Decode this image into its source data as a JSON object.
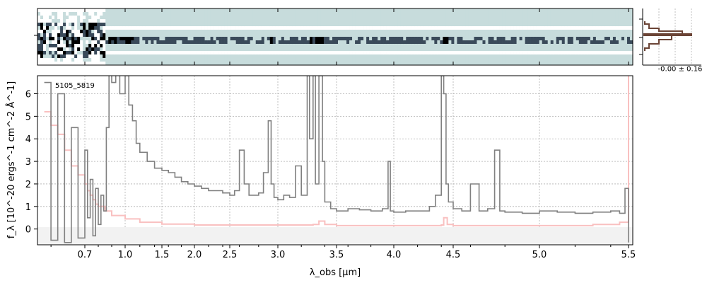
{
  "chart_data": [
    {
      "type": "heatmap",
      "panel": "2d-spectrum",
      "colormap": [
        "#ffffff",
        "#c7dcdc",
        "#3a4a5a",
        "#000000"
      ],
      "background_color": "#c4dcdb"
    },
    {
      "type": "line",
      "panel": "1d-spectrum",
      "label": "5105_5819",
      "xlabel": "λ_obs [μm]",
      "ylabel": "f_λ [10^-20 ergs^-1 cm^-2 Å^-1]",
      "x_ticks": [
        "0.7",
        "1.0",
        "1.5",
        "2.0",
        "2.5",
        "3.0",
        "3.5",
        "4.0",
        "4.5",
        "5.0",
        "5.5"
      ],
      "x_tick_values": [
        0.7,
        1.0,
        1.5,
        2.0,
        2.5,
        3.0,
        3.5,
        4.0,
        4.5,
        5.0,
        5.5
      ],
      "y_ticks": [
        "0",
        "1",
        "2",
        "3",
        "4",
        "5",
        "6"
      ],
      "ylim": [
        -0.7,
        6.8
      ],
      "x_scale": "sqrt-like (spectral grid)",
      "grid": true,
      "series": [
        {
          "color": "#808080",
          "x": [
            0.58,
            0.6,
            0.62,
            0.64,
            0.66,
            0.68,
            0.7,
            0.72,
            0.74,
            0.76,
            0.78,
            0.8,
            0.82,
            0.84,
            0.86,
            0.88,
            0.9,
            0.93,
            0.96,
            1.0,
            1.05,
            1.1,
            1.15,
            1.2,
            1.3,
            1.4,
            1.5,
            1.6,
            1.7,
            1.8,
            1.9,
            2.0,
            2.1,
            2.2,
            2.3,
            2.4,
            2.5,
            2.55,
            2.6,
            2.65,
            2.7,
            2.8,
            2.85,
            2.9,
            2.93,
            2.96,
            3.0,
            3.05,
            3.1,
            3.15,
            3.2,
            3.25,
            3.27,
            3.3,
            3.32,
            3.35,
            3.38,
            3.4,
            3.45,
            3.5,
            3.6,
            3.7,
            3.8,
            3.9,
            3.95,
            3.97,
            4.0,
            4.1,
            4.2,
            4.3,
            4.35,
            4.4,
            4.42,
            4.44,
            4.46,
            4.5,
            4.55,
            4.6,
            4.65,
            4.7,
            4.74,
            4.77,
            4.8,
            4.9,
            5.0,
            5.1,
            5.2,
            5.3,
            5.4,
            5.45,
            5.48,
            5.5
          ],
          "y": [
            6.5,
            -0.5,
            6.0,
            -0.6,
            4.5,
            -0.4,
            3.5,
            0.5,
            2.2,
            -0.3,
            1.8,
            0.2,
            1.5,
            0.8,
            4.5,
            7.0,
            6.5,
            7.0,
            6.0,
            6.8,
            5.5,
            4.8,
            3.8,
            3.4,
            3.0,
            2.7,
            2.6,
            2.5,
            2.3,
            2.1,
            2.0,
            1.9,
            1.8,
            1.7,
            1.7,
            1.6,
            1.5,
            1.7,
            3.5,
            2.0,
            1.5,
            1.6,
            2.5,
            4.8,
            2.0,
            1.4,
            1.3,
            1.5,
            1.4,
            2.8,
            1.5,
            6.8,
            4.0,
            6.8,
            2.0,
            6.8,
            3.0,
            1.2,
            0.9,
            0.8,
            0.9,
            0.85,
            0.8,
            0.9,
            3.0,
            0.8,
            0.75,
            0.8,
            0.8,
            1.0,
            1.5,
            6.8,
            6.0,
            2.0,
            1.2,
            0.9,
            0.8,
            2.0,
            0.8,
            0.9,
            3.5,
            0.8,
            0.75,
            0.7,
            0.8,
            0.75,
            0.7,
            0.75,
            0.8,
            0.7,
            1.8,
            -0.6
          ]
        },
        {
          "color": "#f9c0c0",
          "x": [
            0.58,
            0.6,
            0.62,
            0.64,
            0.66,
            0.68,
            0.7,
            0.72,
            0.74,
            0.76,
            0.78,
            0.8,
            0.85,
            0.9,
            1.0,
            1.2,
            1.5,
            2.0,
            2.5,
            3.0,
            3.3,
            3.35,
            3.4,
            3.5,
            4.0,
            4.4,
            4.42,
            4.45,
            4.5,
            5.0,
            5.3,
            5.45,
            5.5
          ],
          "y": [
            5.2,
            4.6,
            4.2,
            3.5,
            2.8,
            2.4,
            2.0,
            1.7,
            1.5,
            1.3,
            1.1,
            1.0,
            0.8,
            0.6,
            0.45,
            0.3,
            0.22,
            0.18,
            0.18,
            0.18,
            0.2,
            0.35,
            0.2,
            0.15,
            0.15,
            0.18,
            0.5,
            0.2,
            0.15,
            0.15,
            0.2,
            0.3,
            6.8
          ]
        }
      ]
    },
    {
      "type": "histogram",
      "panel": "residual-histogram",
      "label": "-0.00 ± 0.16",
      "color": "#6b4436"
    }
  ]
}
